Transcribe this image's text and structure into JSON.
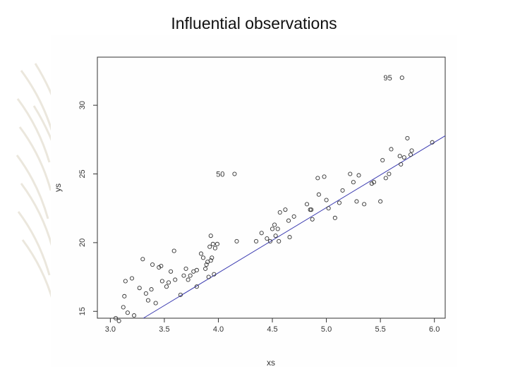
{
  "slide": {
    "title": "Influential observations"
  },
  "chart_data": {
    "type": "scatter",
    "title": "",
    "xlabel": "xs",
    "ylabel": "ys",
    "xlim": [
      2.88,
      6.1
    ],
    "ylim": [
      14.5,
      33.5
    ],
    "x_ticks": [
      "3.0",
      "3.5",
      "4.0",
      "4.5",
      "5.0",
      "5.5",
      "6.0"
    ],
    "y_ticks": [
      "15",
      "20",
      "25",
      "30"
    ],
    "grid": false,
    "regression_line": {
      "intercept": -1.2,
      "slope": 4.75
    },
    "point_color": "#333333",
    "line_color": "#3a3ab0",
    "annotations": [
      {
        "label": "95",
        "x": 5.7,
        "y": 32.0
      },
      {
        "label": "50",
        "x": 4.15,
        "y": 25.0
      }
    ],
    "series": [
      {
        "points": [
          [
            3.05,
            14.5
          ],
          [
            3.08,
            14.3
          ],
          [
            3.12,
            15.3
          ],
          [
            3.13,
            16.1
          ],
          [
            3.14,
            17.2
          ],
          [
            3.16,
            14.9
          ],
          [
            3.2,
            17.4
          ],
          [
            3.22,
            14.7
          ],
          [
            3.27,
            16.7
          ],
          [
            3.3,
            18.8
          ],
          [
            3.33,
            16.3
          ],
          [
            3.35,
            15.8
          ],
          [
            3.38,
            16.6
          ],
          [
            3.39,
            18.4
          ],
          [
            3.42,
            15.6
          ],
          [
            3.45,
            18.2
          ],
          [
            3.47,
            18.3
          ],
          [
            3.48,
            17.2
          ],
          [
            3.52,
            16.8
          ],
          [
            3.54,
            17.1
          ],
          [
            3.56,
            17.9
          ],
          [
            3.59,
            19.4
          ],
          [
            3.6,
            17.3
          ],
          [
            3.65,
            16.2
          ],
          [
            3.68,
            17.6
          ],
          [
            3.7,
            18.1
          ],
          [
            3.72,
            17.3
          ],
          [
            3.74,
            17.6
          ],
          [
            3.77,
            17.9
          ],
          [
            3.8,
            18.0
          ],
          [
            3.8,
            16.8
          ],
          [
            3.84,
            19.2
          ],
          [
            3.86,
            18.9
          ],
          [
            3.88,
            18.1
          ],
          [
            3.89,
            18.4
          ],
          [
            3.9,
            18.6
          ],
          [
            3.91,
            17.5
          ],
          [
            3.92,
            19.7
          ],
          [
            3.93,
            18.7
          ],
          [
            3.93,
            20.5
          ],
          [
            3.94,
            18.9
          ],
          [
            3.95,
            19.9
          ],
          [
            3.96,
            17.7
          ],
          [
            3.97,
            19.6
          ],
          [
            3.99,
            19.9
          ],
          [
            4.15,
            25.0
          ],
          [
            4.17,
            20.1
          ],
          [
            4.35,
            20.1
          ],
          [
            4.4,
            20.7
          ],
          [
            4.45,
            20.3
          ],
          [
            4.48,
            20.1
          ],
          [
            4.5,
            21.0
          ],
          [
            4.52,
            21.3
          ],
          [
            4.53,
            20.5
          ],
          [
            4.55,
            21.0
          ],
          [
            4.56,
            20.1
          ],
          [
            4.57,
            22.2
          ],
          [
            4.62,
            22.4
          ],
          [
            4.65,
            21.6
          ],
          [
            4.66,
            20.4
          ],
          [
            4.7,
            21.9
          ],
          [
            4.82,
            22.8
          ],
          [
            4.85,
            22.4
          ],
          [
            4.86,
            22.4
          ],
          [
            4.87,
            21.7
          ],
          [
            4.92,
            24.7
          ],
          [
            4.93,
            23.5
          ],
          [
            4.98,
            24.8
          ],
          [
            5.0,
            23.1
          ],
          [
            5.02,
            22.5
          ],
          [
            5.08,
            21.8
          ],
          [
            5.12,
            22.9
          ],
          [
            5.15,
            23.8
          ],
          [
            5.22,
            25.0
          ],
          [
            5.25,
            24.4
          ],
          [
            5.28,
            23.0
          ],
          [
            5.3,
            24.9
          ],
          [
            5.35,
            22.8
          ],
          [
            5.42,
            24.3
          ],
          [
            5.44,
            24.4
          ],
          [
            5.5,
            23.0
          ],
          [
            5.52,
            26.0
          ],
          [
            5.55,
            24.7
          ],
          [
            5.58,
            25.0
          ],
          [
            5.6,
            26.8
          ],
          [
            5.68,
            26.3
          ],
          [
            5.69,
            25.7
          ],
          [
            5.7,
            32.0
          ],
          [
            5.72,
            26.2
          ],
          [
            5.75,
            27.6
          ],
          [
            5.78,
            26.4
          ],
          [
            5.79,
            26.7
          ],
          [
            5.98,
            27.3
          ]
        ]
      }
    ]
  }
}
